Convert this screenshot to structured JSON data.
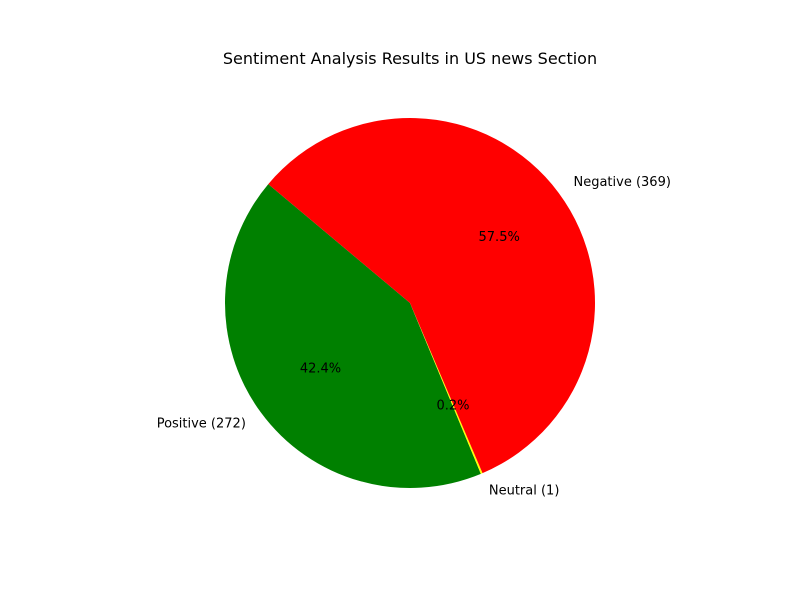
{
  "chart_data": {
    "type": "pie",
    "title": "Sentiment Analysis Results in US news Section",
    "slices": [
      {
        "label": "Positive (272)",
        "value": 272,
        "percent_label": "42.4%",
        "color": "#008000"
      },
      {
        "label": "Neutral (1)",
        "value": 1,
        "percent_label": "0.2%",
        "color": "#ffff00"
      },
      {
        "label": "Negative (369)",
        "value": 369,
        "percent_label": "57.5%",
        "color": "#ff0000"
      }
    ],
    "start_angle_deg": 140,
    "direction": "counterclockwise"
  }
}
